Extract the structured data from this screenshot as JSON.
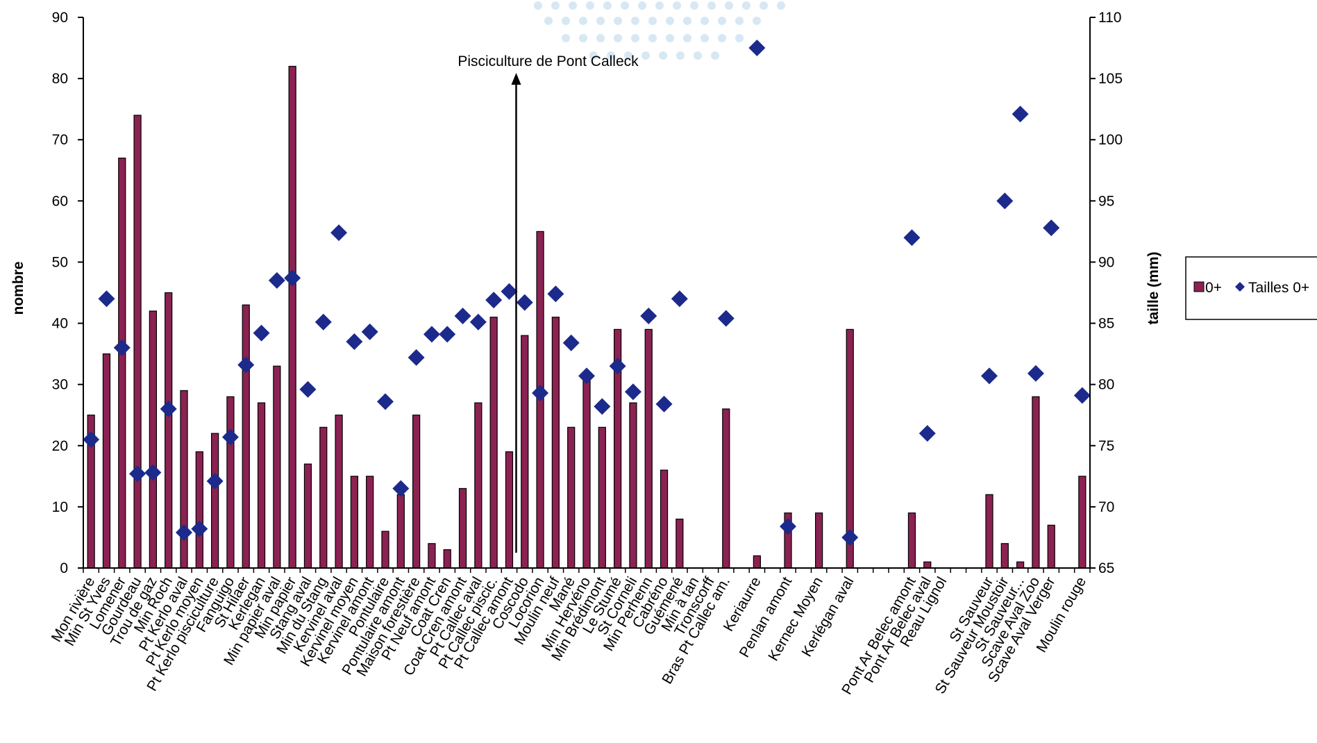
{
  "chart_data": {
    "type": "bar",
    "categories": [
      "Mon rivière",
      "Min St Yves",
      "Lomener",
      "Gourdeau",
      "Trou de gaz",
      "Min Roch",
      "Pt Kerlo aval",
      "Pt Kerlo moyen",
      "Pt Kerlo pisciculture",
      "Fanguigo",
      "St Hilaer",
      "Kerlegan",
      "Min papier aval",
      "Min papier",
      "Stang aval",
      "Min du Stang",
      "Kervinel aval",
      "Kervinel moyen",
      "Kervinel amont",
      "Pontulaire",
      "Pontulaire amont",
      "Maison forestière",
      "Pt Neuf amont",
      "Coat Cren",
      "Coat Cren amont",
      "Pt Callec aval",
      "Pt Callec piscic.",
      "Pt Callec amont",
      "Coscodo",
      "Locorion",
      "Moulin neuf",
      "Mané",
      "Min Hervéno",
      "Min Brédimont",
      "Le Stumé",
      "St Corneli",
      "Min Perhenn",
      "Cabréno",
      "Guémené",
      "Min à tan",
      "Tronscorff",
      "Bras Pt Callec am.",
      "",
      "Keriaurre",
      "",
      "Penlan amont",
      "",
      "Kernec Moyen",
      "",
      "Kerlégan aval",
      "",
      "",
      "",
      "Pont Ar Belec amont",
      "Pont Ar Belec aval",
      "Reau Lignol",
      "",
      "",
      "St Sauveur",
      "St Sauveur Moustoir",
      "St Sauveur...",
      "Scave Aval Zoo",
      "Scave Aval Verger",
      "",
      "Moulin rouge"
    ],
    "series": [
      {
        "name": "0+",
        "type": "bar",
        "axis": "left",
        "values": [
          25,
          35,
          67,
          74,
          42,
          45,
          29,
          19,
          22,
          28,
          43,
          27,
          33,
          82,
          17,
          23,
          25,
          15,
          15,
          6,
          12,
          25,
          4,
          3,
          13,
          27,
          41,
          19,
          38,
          55,
          41,
          23,
          31,
          23,
          39,
          27,
          39,
          16,
          8,
          0,
          0,
          26,
          0,
          2,
          0,
          9,
          0,
          9,
          0,
          39,
          0,
          0,
          0,
          9,
          1,
          0,
          0,
          0,
          12,
          4,
          1,
          28,
          7,
          0,
          15
        ]
      },
      {
        "name": "Tailles 0+",
        "type": "scatter",
        "axis": "right",
        "values": [
          75.5,
          87,
          83,
          72.7,
          72.8,
          78,
          67.9,
          68.2,
          72.1,
          75.7,
          81.6,
          84.2,
          88.5,
          88.7,
          79.6,
          85.1,
          92.4,
          83.5,
          84.3,
          78.6,
          71.5,
          82.2,
          84.1,
          84.1,
          85.6,
          85.1,
          86.9,
          87.6,
          86.7,
          79.3,
          87.4,
          83.4,
          80.7,
          78.2,
          81.5,
          79.4,
          85.6,
          78.4,
          87.0,
          null,
          null,
          85.4,
          null,
          107.5,
          null,
          68.4,
          null,
          null,
          null,
          67.5,
          null,
          null,
          null,
          92.0,
          76.0,
          null,
          null,
          null,
          80.7,
          95.0,
          102.1,
          80.9,
          92.8,
          null,
          79.1
        ]
      }
    ],
    "ylabel": "nombre",
    "y2label": "taille (mm)",
    "ylim": [
      0,
      90
    ],
    "y2lim": [
      65,
      110
    ],
    "yticks": [
      "0",
      "10",
      "20",
      "30",
      "40",
      "50",
      "60",
      "70",
      "80",
      "90"
    ],
    "y2ticks": [
      "65",
      "70",
      "75",
      "80",
      "85",
      "90",
      "95",
      "100",
      "105",
      "110"
    ],
    "annotation": {
      "text": "Pisciculture de Pont Calleck",
      "category_index": 27
    },
    "legend": {
      "position": "right",
      "entries": [
        "0+",
        "Tailles 0+"
      ]
    },
    "grid": false
  },
  "colors": {
    "bar_fill": "#8b2252",
    "marker": "#1c2a8c",
    "axis": "#000000"
  }
}
